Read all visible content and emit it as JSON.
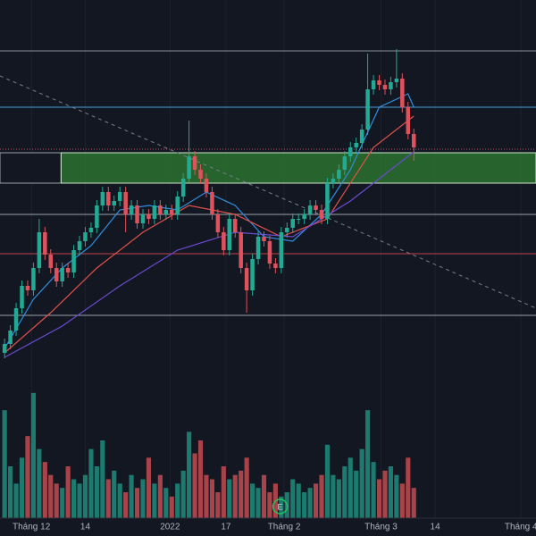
{
  "chart_data": {
    "type": "candlestick",
    "up_color": "#22ab94",
    "down_color": "#e0525b",
    "volume_up_color": "#1c7a6f",
    "volume_down_color": "#a8434a",
    "ylim": [
      0,
      440
    ],
    "volume_ylim": [
      0,
      150
    ],
    "xlim": [
      -0.8,
      92.2
    ],
    "open": [
      45,
      55,
      70,
      95,
      120,
      115,
      140,
      180,
      155,
      140,
      125,
      140,
      135,
      160,
      170,
      180,
      185,
      210,
      225,
      210,
      215,
      225,
      200,
      210,
      190,
      200,
      195,
      210,
      200,
      205,
      200,
      220,
      240,
      265,
      250,
      240,
      225,
      200,
      180,
      160,
      195,
      180,
      140,
      115,
      150,
      175,
      170,
      145,
      140,
      180,
      185,
      195,
      195,
      200,
      210,
      205,
      195,
      235,
      240,
      250,
      265,
      275,
      280,
      295,
      340,
      350,
      345,
      340,
      348,
      352,
      320,
      290
    ],
    "high": [
      61,
      76,
      101,
      126,
      126,
      146,
      195,
      186,
      161,
      146,
      146,
      146,
      166,
      176,
      186,
      191,
      216,
      231,
      231,
      221,
      231,
      231,
      216,
      216,
      206,
      206,
      216,
      216,
      211,
      211,
      226,
      246,
      305,
      271,
      256,
      246,
      231,
      206,
      186,
      201,
      201,
      186,
      146,
      156,
      181,
      181,
      176,
      151,
      186,
      191,
      201,
      201,
      206,
      216,
      216,
      211,
      241,
      246,
      256,
      271,
      281,
      286,
      301,
      380,
      356,
      356,
      351,
      354,
      385,
      358,
      326,
      296
    ],
    "low": [
      39,
      49,
      64,
      89,
      109,
      109,
      134,
      149,
      134,
      119,
      119,
      129,
      129,
      154,
      164,
      174,
      179,
      204,
      204,
      204,
      209,
      180,
      194,
      184,
      184,
      189,
      189,
      194,
      194,
      194,
      194,
      214,
      234,
      244,
      234,
      219,
      194,
      174,
      154,
      154,
      174,
      134,
      90,
      109,
      144,
      164,
      139,
      134,
      134,
      174,
      179,
      189,
      189,
      194,
      199,
      189,
      189,
      229,
      234,
      244,
      259,
      269,
      274,
      289,
      334,
      339,
      334,
      334,
      342,
      314,
      284,
      260
    ],
    "close": [
      55,
      70,
      95,
      120,
      115,
      140,
      180,
      155,
      140,
      125,
      140,
      135,
      160,
      170,
      180,
      185,
      210,
      225,
      210,
      215,
      225,
      200,
      210,
      190,
      200,
      195,
      210,
      200,
      205,
      200,
      220,
      240,
      265,
      250,
      240,
      225,
      200,
      180,
      160,
      195,
      180,
      140,
      115,
      150,
      175,
      170,
      145,
      140,
      180,
      185,
      195,
      195,
      200,
      210,
      205,
      195,
      235,
      240,
      250,
      265,
      275,
      280,
      295,
      340,
      350,
      345,
      340,
      348,
      352,
      320,
      290,
      275
    ],
    "volume": [
      125,
      60,
      40,
      70,
      95,
      145,
      80,
      65,
      50,
      40,
      35,
      60,
      45,
      40,
      50,
      80,
      60,
      90,
      45,
      55,
      40,
      30,
      50,
      35,
      45,
      70,
      40,
      50,
      35,
      25,
      40,
      55,
      100,
      75,
      90,
      50,
      45,
      30,
      60,
      45,
      50,
      55,
      70,
      40,
      35,
      50,
      30,
      40,
      25,
      30,
      45,
      40,
      30,
      35,
      40,
      50,
      85,
      50,
      45,
      60,
      70,
      55,
      80,
      125,
      65,
      45,
      55,
      60,
      50,
      40,
      70,
      35
    ],
    "lines": [
      {
        "color": "#2f8fe0",
        "x": [
          0,
          5,
          10,
          15,
          20,
          25,
          30,
          35,
          40,
          45,
          50,
          55,
          60,
          65,
          70,
          71
        ],
        "values": [
          50,
          105,
          140,
          165,
          205,
          210,
          205,
          225,
          210,
          175,
          170,
          200,
          250,
          320,
          335,
          320
        ]
      },
      {
        "color": "#e0524a",
        "x": [
          0,
          8,
          16,
          24,
          32,
          40,
          48,
          56,
          64,
          71
        ],
        "values": [
          45,
          90,
          140,
          180,
          210,
          200,
          175,
          195,
          275,
          310
        ]
      },
      {
        "color": "#6a4bd0",
        "x": [
          0,
          10,
          20,
          30,
          40,
          50,
          60,
          71
        ],
        "values": [
          40,
          75,
          120,
          160,
          180,
          175,
          215,
          270
        ]
      }
    ],
    "levels": [
      {
        "value": 383,
        "color": "#8a8e99"
      },
      {
        "value": 320,
        "color": "#4a9fd8"
      },
      {
        "value": 273,
        "color": "#c0506a",
        "dotted": true
      },
      {
        "value": 200,
        "color": "#9aa0a8"
      },
      {
        "value": 156,
        "color": "#c0404a"
      },
      {
        "value": 87,
        "color": "#9aa0a8"
      }
    ],
    "zone": {
      "values": [
        235,
        269
      ],
      "x": [
        9.8,
        92.2
      ],
      "color": "#2e7d32"
    },
    "trendline": {
      "x": [
        -0.8,
        92.2
      ],
      "values": [
        355,
        95
      ],
      "color": "#7a7e88"
    },
    "xticks": [
      {
        "value": 4.65,
        "label": "Tháng 12"
      },
      {
        "value": 14,
        "label": "14"
      },
      {
        "value": 28.7,
        "label": "2022"
      },
      {
        "value": 38.4,
        "label": "17"
      },
      {
        "value": 48.5,
        "label": "Tháng 2"
      },
      {
        "value": 65.3,
        "label": "Tháng 3"
      },
      {
        "value": 74.7,
        "label": "14"
      },
      {
        "value": 89.6,
        "label": "Tháng 4"
      }
    ],
    "earnings_marker": {
      "label": "E",
      "x": 47.8
    }
  }
}
